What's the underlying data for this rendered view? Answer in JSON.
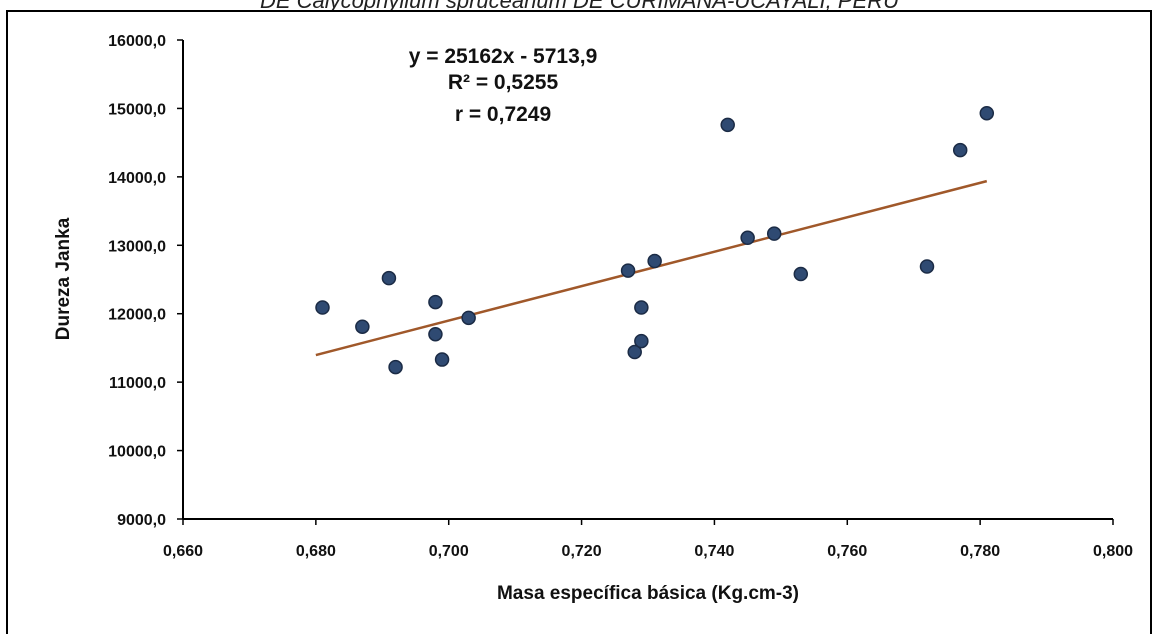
{
  "header_text": "DE Calycophyllum spruceanum DE CURIMANA-UCAYALI, PERÚ",
  "chart_data": {
    "type": "scatter",
    "title": "",
    "xlabel": "Masa específica básica  (Kg.cm-3)",
    "ylabel": "Dureza Janka",
    "xlim": [
      0.66,
      0.8
    ],
    "ylim": [
      9000,
      16000
    ],
    "x_ticks": [
      0.66,
      0.68,
      0.7,
      0.72,
      0.74,
      0.76,
      0.78,
      0.8
    ],
    "x_tick_labels": [
      "0,660",
      "0,680",
      "0,700",
      "0,720",
      "0,740",
      "0,760",
      "0,780",
      "0,800"
    ],
    "y_ticks": [
      9000,
      10000,
      11000,
      12000,
      13000,
      14000,
      15000,
      16000
    ],
    "y_tick_labels": [
      "9000,0",
      "10000,0",
      "11000,0",
      "12000,0",
      "13000,0",
      "14000,0",
      "15000,0",
      "16000,0"
    ],
    "grid": false,
    "legend": "none",
    "point_color": "#2f4a72",
    "point_edge_color": "#1b2b45",
    "trendline_color": "#a0582a",
    "annotations": [
      "y = 25162x - 5713,9",
      "R² = 0,5255",
      "r = 0,7249"
    ],
    "trendline": {
      "slope": 25162,
      "intercept": -5713.9,
      "x_range": [
        0.68,
        0.781
      ]
    },
    "points": [
      {
        "x": 0.681,
        "y": 12090
      },
      {
        "x": 0.687,
        "y": 11810
      },
      {
        "x": 0.691,
        "y": 12520
      },
      {
        "x": 0.692,
        "y": 11220
      },
      {
        "x": 0.698,
        "y": 12170
      },
      {
        "x": 0.698,
        "y": 11700
      },
      {
        "x": 0.699,
        "y": 11330
      },
      {
        "x": 0.703,
        "y": 11940
      },
      {
        "x": 0.727,
        "y": 12630
      },
      {
        "x": 0.728,
        "y": 11440
      },
      {
        "x": 0.729,
        "y": 11600
      },
      {
        "x": 0.729,
        "y": 12090
      },
      {
        "x": 0.731,
        "y": 12770
      },
      {
        "x": 0.742,
        "y": 14760
      },
      {
        "x": 0.745,
        "y": 13110
      },
      {
        "x": 0.749,
        "y": 13170
      },
      {
        "x": 0.753,
        "y": 12580
      },
      {
        "x": 0.772,
        "y": 12690
      },
      {
        "x": 0.777,
        "y": 14390
      },
      {
        "x": 0.781,
        "y": 14930
      }
    ]
  }
}
